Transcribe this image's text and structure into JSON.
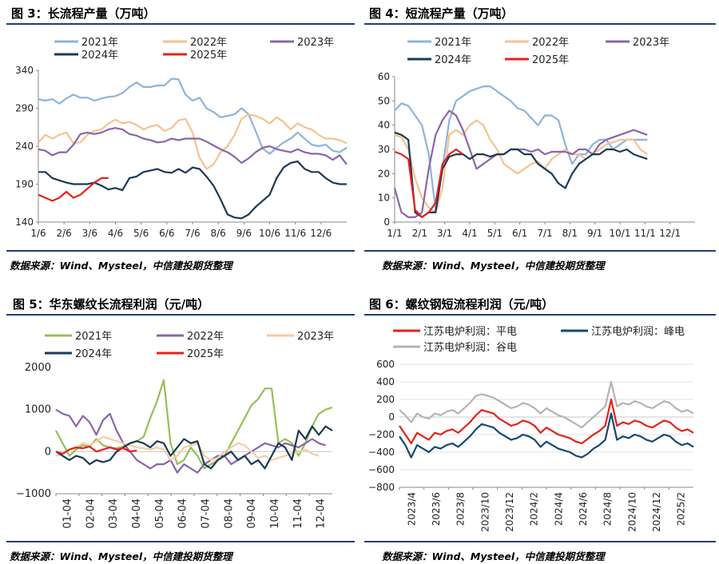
{
  "colors": {
    "c2021": "#8eb4d9",
    "c2022": "#f6c28f",
    "c2023": "#8b65a8",
    "c2024": "#1b3a57",
    "c2025": "#e8201c",
    "green": "#95c056",
    "purple": "#8b65a8",
    "peach": "#f6cba6",
    "navy": "#1b3a57",
    "red": "#e2231a",
    "gray": "#b4b4b4",
    "blue": "#124a72",
    "rule": "#1f3f6f"
  },
  "panels": {
    "p3": {
      "title": "图 3：长流程产量（万吨）",
      "source": "数据来源：Wind、Mysteel，中信建投期货整理"
    },
    "p4": {
      "title": "图 4：短流程产量（万吨）",
      "source": "数据来源：Wind、Mysteel，中信建投期货整理"
    },
    "p5": {
      "title": "图 5：华东螺纹长流程利润（元/吨）",
      "source": "数据来源：Wind、Mysteel，中信建投期货整理"
    },
    "p6": {
      "title": "图 6：螺纹钢短流程利润（元/吨）",
      "source": "数据来源：Wind、Mysteel，中信建投期货整理"
    }
  },
  "chart_data": [
    {
      "id": "p3",
      "type": "line",
      "ylim": [
        140,
        340
      ],
      "yticks": [
        "340",
        "290",
        "240",
        "190",
        "140"
      ],
      "yvals": [
        340,
        290,
        240,
        190,
        140
      ],
      "xticks": [
        "1/6",
        "2/6",
        "3/6",
        "4/6",
        "5/6",
        "6/6",
        "7/6",
        "8/6",
        "9/6",
        "10/6",
        "11/6",
        "12/6"
      ],
      "series": [
        {
          "name": "2021年",
          "color": "#8eb4d9",
          "values": [
            302,
            300,
            302,
            296,
            303,
            308,
            304,
            304,
            300,
            303,
            305,
            306,
            310,
            318,
            324,
            318,
            318,
            320,
            320,
            329,
            328,
            308,
            300,
            304,
            290,
            285,
            278,
            280,
            282,
            290,
            282,
            260,
            237,
            230,
            238,
            245,
            250,
            258,
            250,
            242,
            240,
            242,
            234,
            232,
            238
          ]
        },
        {
          "name": "2022年",
          "color": "#f6c28f",
          "values": [
            245,
            255,
            250,
            255,
            258,
            244,
            245,
            255,
            260,
            262,
            270,
            275,
            270,
            272,
            268,
            262,
            266,
            268,
            260,
            264,
            274,
            276,
            258,
            225,
            210,
            216,
            232,
            240,
            255,
            276,
            282,
            280,
            276,
            270,
            278,
            272,
            262,
            270,
            265,
            262,
            255,
            250,
            250,
            248,
            244
          ]
        },
        {
          "name": "2023年",
          "color": "#8b65a8",
          "values": [
            236,
            234,
            228,
            232,
            232,
            242,
            256,
            258,
            256,
            258,
            262,
            264,
            262,
            256,
            254,
            250,
            248,
            245,
            246,
            250,
            248,
            250,
            250,
            250,
            246,
            241,
            236,
            232,
            226,
            218,
            224,
            232,
            238,
            240,
            236,
            234,
            232,
            236,
            232,
            230,
            230,
            228,
            222,
            228,
            216
          ]
        },
        {
          "name": "2024年",
          "color": "#1b3a57",
          "values": [
            206,
            206,
            198,
            195,
            192,
            190,
            190,
            190,
            192,
            188,
            183,
            185,
            182,
            198,
            200,
            206,
            208,
            210,
            206,
            205,
            210,
            205,
            212,
            210,
            200,
            188,
            170,
            150,
            146,
            145,
            150,
            160,
            168,
            176,
            198,
            212,
            218,
            220,
            210,
            206,
            206,
            198,
            192,
            190,
            190
          ]
        },
        {
          "name": "2025年",
          "color": "#e8201c",
          "values": [
            176,
            172,
            168,
            172,
            180,
            172,
            176,
            184,
            192,
            198,
            198
          ]
        }
      ]
    },
    {
      "id": "p4",
      "type": "line",
      "ylim": [
        0,
        60
      ],
      "yticks": [
        "60",
        "50",
        "40",
        "30",
        "20",
        "10",
        "0"
      ],
      "yvals": [
        60,
        50,
        40,
        30,
        20,
        10,
        0
      ],
      "xticks": [
        "1/1",
        "2/1",
        "3/1",
        "4/1",
        "5/1",
        "6/1",
        "7/1",
        "8/1",
        "9/1",
        "10/1",
        "11/1",
        "12/1"
      ],
      "series": [
        {
          "name": "2021年",
          "color": "#8eb4d9",
          "values": [
            46,
            49,
            48,
            44,
            40,
            28,
            5,
            22,
            42,
            50,
            52,
            54,
            55,
            56,
            56,
            54,
            52,
            50,
            47,
            46,
            43,
            40,
            44,
            44,
            42,
            32,
            24,
            28,
            28,
            32,
            34,
            34,
            30,
            32,
            34,
            34,
            34,
            34
          ]
        },
        {
          "name": "2022年",
          "color": "#f6c28f",
          "values": [
            36,
            35,
            30,
            18,
            10,
            6,
            4,
            14,
            36,
            38,
            36,
            40,
            42,
            40,
            34,
            30,
            24,
            22,
            20,
            22,
            24,
            25,
            22,
            26,
            28,
            30,
            28,
            28,
            26,
            28,
            30,
            32,
            33,
            34,
            34,
            34,
            30,
            28
          ]
        },
        {
          "name": "2023年",
          "color": "#8b65a8",
          "values": [
            14,
            4,
            2,
            2,
            4,
            22,
            36,
            42,
            46,
            44,
            38,
            30,
            22,
            24,
            26,
            28,
            28,
            30,
            30,
            30,
            29,
            30,
            28,
            29,
            29,
            29,
            28,
            30,
            30,
            28,
            32,
            34,
            35,
            36,
            37,
            38,
            37,
            36
          ]
        },
        {
          "name": "2024年",
          "color": "#1b3a57",
          "values": [
            37,
            36,
            34,
            4,
            2,
            4,
            4,
            22,
            27,
            28,
            28,
            26,
            28,
            28,
            27,
            28,
            28,
            30,
            30,
            28,
            28,
            24,
            22,
            20,
            16,
            14,
            20,
            24,
            26,
            28,
            28,
            30,
            30,
            29,
            30,
            28,
            27,
            26
          ]
        },
        {
          "name": "2025年",
          "color": "#e8201c",
          "values": [
            29,
            28,
            26,
            5,
            2,
            4,
            8,
            24,
            28,
            30,
            28
          ]
        }
      ]
    },
    {
      "id": "p5",
      "type": "line",
      "ylim": [
        -1000,
        2000
      ],
      "yticks": [
        "2000",
        "1000",
        "0",
        "−1000"
      ],
      "yvals": [
        2000,
        1000,
        0,
        -1000
      ],
      "xticks": [
        "01-04",
        "02-04",
        "03-04",
        "04-04",
        "05-04",
        "06-04",
        "07-04",
        "08-04",
        "09-04",
        "10-04",
        "11-04",
        "12-04"
      ],
      "series": [
        {
          "name": "2021年",
          "color": "#95c056",
          "values": [
            500,
            200,
            -100,
            50,
            150,
            120,
            300,
            150,
            100,
            80,
            120,
            200,
            250,
            350,
            800,
            1200,
            1700,
            200,
            -300,
            -200,
            100,
            -100,
            -400,
            -300,
            -200,
            -100,
            200,
            500,
            800,
            1100,
            1250,
            1500,
            1500,
            200,
            300,
            200,
            -100,
            200,
            600,
            900,
            1000,
            1050
          ]
        },
        {
          "name": "2022年",
          "color": "#8b65a8",
          "values": [
            1000,
            900,
            850,
            600,
            850,
            700,
            400,
            750,
            900,
            500,
            200,
            0,
            -200,
            -300,
            -400,
            -300,
            -300,
            -200,
            -500,
            -300,
            -400,
            -500,
            -300,
            -200,
            -100,
            -100,
            -300,
            -200,
            -100,
            0,
            100,
            200,
            150,
            100,
            200,
            150,
            100,
            200,
            300,
            200,
            150
          ]
        },
        {
          "name": "2023年",
          "color": "#f6cba6",
          "values": [
            -100,
            -50,
            50,
            100,
            200,
            150,
            250,
            350,
            300,
            250,
            200,
            150,
            100,
            80,
            50,
            100,
            50,
            -200,
            -100,
            100,
            150,
            200,
            -100,
            -200,
            -150,
            0,
            100,
            200,
            150,
            0,
            -150,
            -100,
            -200,
            -150,
            -100,
            -50,
            0,
            50,
            -50,
            -100
          ]
        },
        {
          "name": "2024年",
          "color": "#1b3a57",
          "values": [
            0,
            -100,
            -200,
            -100,
            -150,
            -300,
            -200,
            -250,
            -200,
            0,
            100,
            200,
            250,
            200,
            100,
            250,
            200,
            -100,
            100,
            300,
            200,
            250,
            -300,
            -400,
            -200,
            -100,
            0,
            -200,
            -100,
            -300,
            -200,
            -400,
            -100,
            200,
            100,
            -200,
            500,
            300,
            600,
            400,
            600,
            500
          ]
        },
        {
          "name": "2025年",
          "color": "#e8201c",
          "values": [
            0,
            -50,
            50,
            100,
            80,
            120,
            0,
            50,
            100,
            50,
            80,
            0,
            30
          ]
        }
      ]
    },
    {
      "id": "p6",
      "type": "line",
      "ylim": [
        -800,
        600
      ],
      "yticks": [
        "600",
        "400",
        "200",
        "0",
        "−200",
        "−400",
        "−600",
        "−800"
      ],
      "yvals": [
        600,
        400,
        200,
        0,
        -200,
        -400,
        -600,
        -800
      ],
      "xticks": [
        "2023/4",
        "2023/6",
        "2023/8",
        "2023/10",
        "2023/12",
        "2024/2",
        "2024/4",
        "2024/6",
        "2024/8",
        "2024/10",
        "2024/12",
        "2025/2"
      ],
      "series": [
        {
          "name": "江苏电炉利润：平电",
          "color": "#e2231a",
          "values": [
            -100,
            -200,
            -300,
            -180,
            -220,
            -260,
            -180,
            -200,
            -160,
            -140,
            -180,
            -120,
            -60,
            20,
            80,
            60,
            40,
            -20,
            -60,
            -100,
            -80,
            -40,
            -60,
            -100,
            -180,
            -120,
            -160,
            -200,
            -220,
            -240,
            -280,
            -300,
            -250,
            -200,
            -160,
            -100,
            200,
            -100,
            -60,
            -80,
            -40,
            -60,
            -100,
            -120,
            -80,
            -40,
            -60,
            -120,
            -160,
            -140,
            -180
          ]
        },
        {
          "name": "江苏电炉利润：峰电",
          "color": "#124a72",
          "values": [
            -220,
            -320,
            -460,
            -320,
            -360,
            -400,
            -340,
            -360,
            -320,
            -300,
            -340,
            -280,
            -220,
            -140,
            -80,
            -100,
            -120,
            -180,
            -220,
            -260,
            -240,
            -200,
            -220,
            -260,
            -340,
            -280,
            -320,
            -360,
            -380,
            -400,
            -440,
            -460,
            -420,
            -360,
            -320,
            -260,
            40,
            -260,
            -220,
            -240,
            -200,
            -220,
            -260,
            -280,
            -240,
            -200,
            -220,
            -280,
            -320,
            -300,
            -340
          ]
        },
        {
          "name": "江苏电炉利润：谷电",
          "color": "#b4b4b4",
          "values": [
            80,
            20,
            -60,
            40,
            0,
            -20,
            40,
            20,
            60,
            80,
            40,
            100,
            160,
            240,
            260,
            240,
            220,
            180,
            140,
            100,
            120,
            160,
            140,
            100,
            40,
            100,
            60,
            20,
            0,
            -40,
            -80,
            -120,
            -60,
            0,
            60,
            120,
            400,
            120,
            160,
            140,
            180,
            160,
            120,
            100,
            140,
            180,
            160,
            100,
            60,
            80,
            40
          ]
        }
      ]
    }
  ]
}
